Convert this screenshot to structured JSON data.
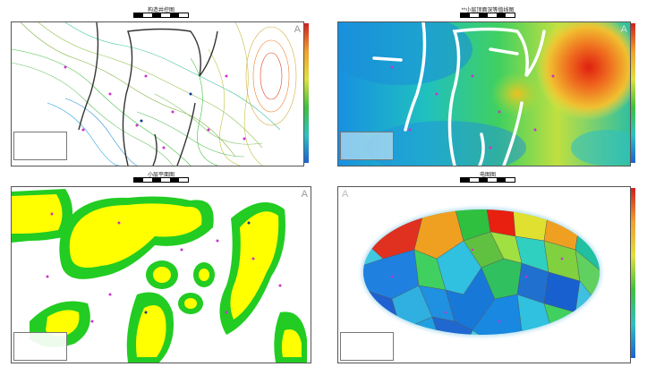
{
  "panels": {
    "p1": {
      "title": "构造井控图"
    },
    "p2": {
      "title": "**小层顶面深等值线图"
    },
    "p3": {
      "title": "小层平面图"
    },
    "p4": {
      "title": "电图图"
    }
  },
  "north_symbol": "A",
  "colors": {
    "contour_low": "#20a0e0",
    "contour_mid": "#40c040",
    "contour_high": "#e04020",
    "sand_yellow": "#ffff00",
    "sand_green": "#22cc22",
    "fault": "#333333"
  },
  "icons": [
    "north-arrow-icon",
    "scale-bar-icon",
    "well-marker-icon"
  ]
}
